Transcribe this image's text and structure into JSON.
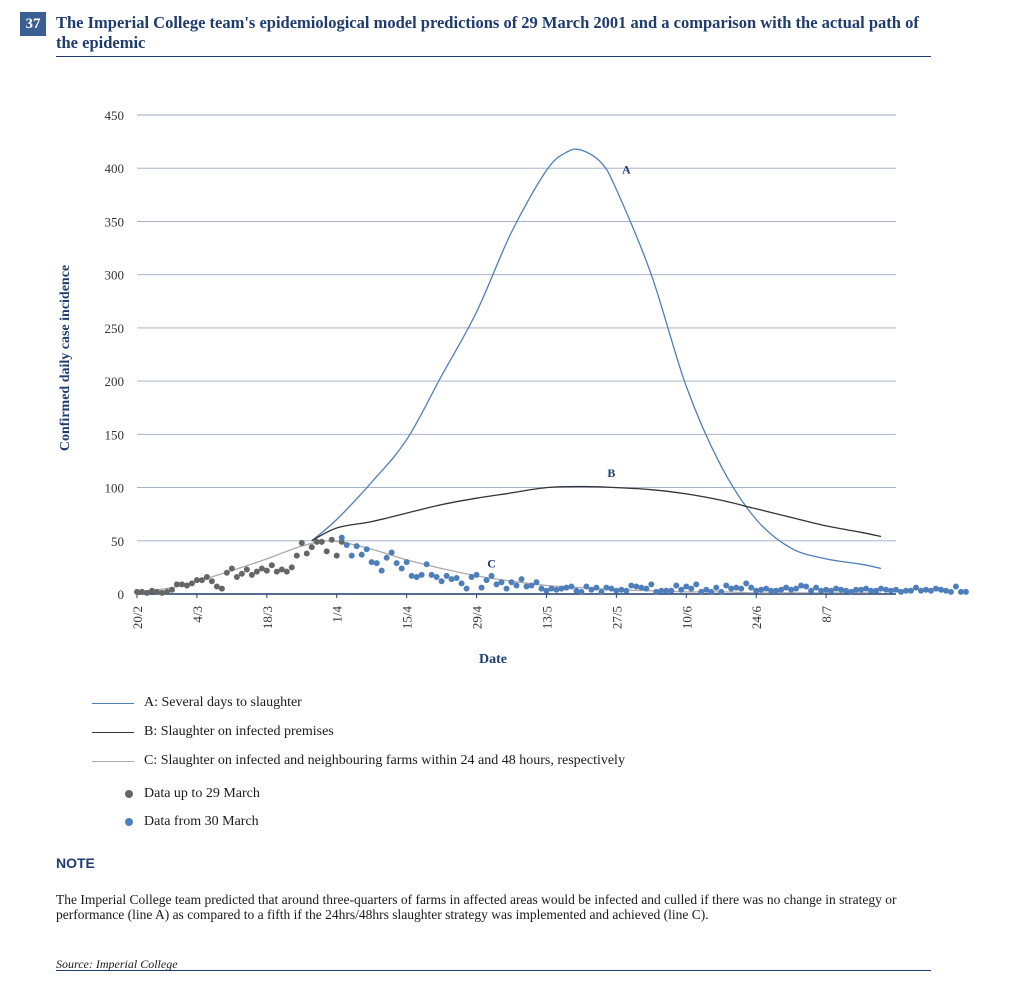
{
  "figure": {
    "number": "37",
    "title": "The Imperial College team's epidemiological model predictions of 29 March 2001 and a comparison with the actual path of the epidemic",
    "colors": {
      "accent": "#1f3c6e",
      "badge": "#3a5f93"
    }
  },
  "chart_data": {
    "type": "line",
    "title": "",
    "xlabel": "Date",
    "ylabel": "Confirmed daily case incidence",
    "xlim_days": [
      0,
      152
    ],
    "ylim": [
      0,
      450
    ],
    "yticks": [
      0,
      50,
      100,
      150,
      200,
      250,
      300,
      350,
      400,
      450
    ],
    "xticks": [
      "20/2",
      "4/3",
      "18/3",
      "1/4",
      "15/4",
      "29/4",
      "13/5",
      "27/5",
      "10/6",
      "24/6",
      "8/7"
    ],
    "grid": true,
    "legend_position": "below",
    "series": [
      {
        "name": "A: Several days to slaughter",
        "label": "A",
        "style": "line",
        "color": "#4f7fba",
        "x": [
          "27/3",
          "1/4",
          "8/4",
          "15/4",
          "22/4",
          "29/4",
          "6/5",
          "13/5",
          "17/5",
          "20/5",
          "24/5",
          "27/5",
          "3/6",
          "10/6",
          "17/6",
          "24/6",
          "1/7",
          "8/7",
          "15/7",
          "19/7"
        ],
        "y": [
          50,
          70,
          105,
          145,
          205,
          265,
          340,
          398,
          415,
          417,
          405,
          380,
          300,
          195,
          120,
          70,
          43,
          33,
          28,
          24
        ]
      },
      {
        "name": "B: Slaughter on infected premises",
        "label": "B",
        "style": "line",
        "color": "#333333",
        "x": [
          "27/3",
          "1/4",
          "8/4",
          "15/4",
          "22/4",
          "29/4",
          "6/5",
          "13/5",
          "20/5",
          "27/5",
          "3/6",
          "10/6",
          "17/6",
          "24/6",
          "1/7",
          "8/7",
          "15/7",
          "19/7"
        ],
        "y": [
          50,
          62,
          68,
          76,
          84,
          90,
          95,
          100,
          101,
          100,
          98,
          94,
          88,
          80,
          72,
          64,
          58,
          54
        ]
      },
      {
        "name": "C: Slaughter on infected and neighbouring farms within 24 and 48 hours, respectively",
        "label": "C",
        "style": "line",
        "color": "#aaaaaa",
        "x": [
          "20/2",
          "27/2",
          "4/3",
          "11/3",
          "18/3",
          "25/3",
          "31/3",
          "8/4",
          "15/4",
          "22/4",
          "29/4",
          "6/5",
          "13/5",
          "20/5",
          "27/5",
          "3/6",
          "10/6",
          "17/6",
          "24/6",
          "1/7",
          "8/7",
          "15/7",
          "19/7"
        ],
        "y": [
          2,
          6,
          12,
          22,
          33,
          45,
          50,
          42,
          32,
          24,
          17,
          12,
          8,
          6,
          4,
          3,
          2,
          2,
          1,
          1,
          1,
          1,
          1
        ]
      },
      {
        "name": "Data up to 29 March",
        "style": "points",
        "color": "#666666",
        "start": "20/2",
        "y": [
          2,
          2,
          1,
          3,
          2,
          1,
          2,
          4,
          9,
          9,
          8,
          10,
          13,
          13,
          16,
          12,
          7,
          5,
          20,
          24,
          16,
          19,
          23,
          18,
          21,
          24,
          22,
          27,
          21,
          23,
          21,
          25,
          36,
          48,
          38,
          44,
          49,
          49,
          40,
          51,
          36,
          49
        ]
      },
      {
        "name": "Data from 30 March",
        "style": "points",
        "color": "#4f7fba",
        "start": "2/4",
        "y": [
          53,
          46,
          36,
          45,
          37,
          42,
          30,
          29,
          22,
          34,
          39,
          29,
          24,
          30,
          17,
          16,
          18,
          28,
          18,
          16,
          12,
          17,
          14,
          15,
          10,
          5,
          16,
          18,
          6,
          13,
          17,
          9,
          11,
          5,
          11,
          8,
          14,
          7,
          8,
          11,
          5,
          3,
          5,
          4,
          5,
          6,
          7,
          3,
          2,
          7,
          4,
          6,
          2,
          6,
          5,
          3,
          4,
          3,
          8,
          7,
          6,
          5,
          9,
          2,
          3,
          3,
          3,
          8,
          4,
          7,
          5,
          9,
          2,
          4,
          2,
          6,
          2,
          8,
          5,
          6,
          5,
          10,
          6,
          3,
          4,
          5,
          3,
          3,
          4,
          6,
          4,
          5,
          8,
          7,
          3,
          6,
          3,
          4,
          3,
          5,
          4,
          3,
          2,
          4,
          4,
          5,
          3,
          3,
          5,
          4,
          3,
          4,
          2,
          3,
          3,
          6,
          3,
          4,
          3,
          5,
          4,
          3,
          2,
          7,
          2,
          2
        ]
      }
    ],
    "annotations": [
      "A",
      "B",
      "C"
    ]
  },
  "note": {
    "heading": "NOTE",
    "text": "The Imperial College team predicted that around three-quarters of farms in affected areas would be infected and culled if there was no change in strategy or performance (line A) as compared to a fifth if the 24hrs/48hrs slaughter strategy was implemented and achieved (line C)."
  },
  "source": "Source: Imperial College"
}
